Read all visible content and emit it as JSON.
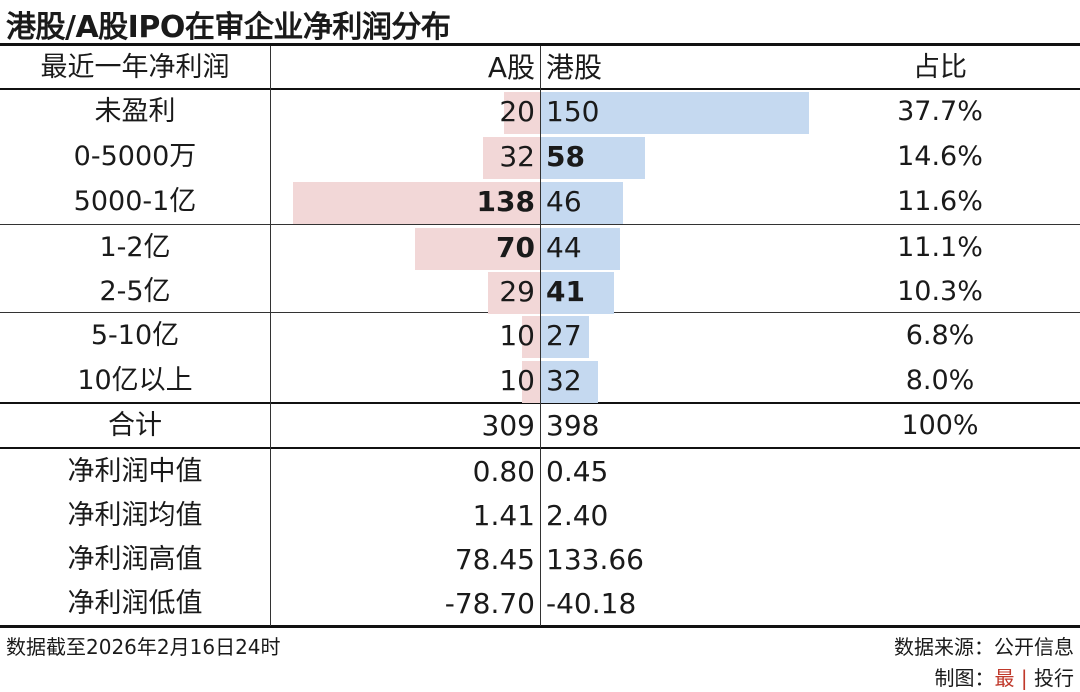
{
  "title": "港股/A股IPO在审企业净利润分布",
  "header": {
    "col1": "最近一年净利润",
    "col2": "A股",
    "col3": "港股",
    "col4": "占比"
  },
  "chart_data": {
    "type": "bar",
    "categories": [
      "未盈利",
      "0-5000万",
      "5000-1亿",
      "1-2亿",
      "2-5亿",
      "5-10亿",
      "10亿以上"
    ],
    "series": [
      {
        "name": "A股",
        "values": [
          20,
          32,
          138,
          70,
          29,
          10,
          10
        ]
      },
      {
        "name": "港股",
        "values": [
          150,
          58,
          46,
          44,
          41,
          27,
          32
        ]
      }
    ],
    "share": [
      "37.7%",
      "14.6%",
      "11.6%",
      "11.1%",
      "10.3%",
      "6.8%",
      "8.0%"
    ],
    "bold_a": [
      false,
      false,
      true,
      true,
      false,
      false,
      false
    ],
    "bold_h": [
      false,
      true,
      false,
      false,
      true,
      false,
      false
    ]
  },
  "total": {
    "label": "合计",
    "a": "309",
    "h": "398",
    "pct": "100%"
  },
  "stats": [
    {
      "label": "净利润中值",
      "a": "0.80",
      "h": "0.45"
    },
    {
      "label": "净利润均值",
      "a": "1.41",
      "h": "2.40"
    },
    {
      "label": "净利润高值",
      "a": "78.45",
      "h": "133.66"
    },
    {
      "label": "净利润低值",
      "a": "-78.70",
      "h": "-40.18"
    }
  ],
  "footer": {
    "date_note": "数据截至2026年2月16日24时",
    "source": "数据来源：公开信息",
    "credit_prefix": "制图：",
    "credit_mark": "最",
    "credit_sep": "|",
    "credit_name": "投行"
  },
  "colors": {
    "a_bar": "#f2d7d7",
    "h_bar": "#c5d9f0",
    "accent": "#c0392b"
  }
}
